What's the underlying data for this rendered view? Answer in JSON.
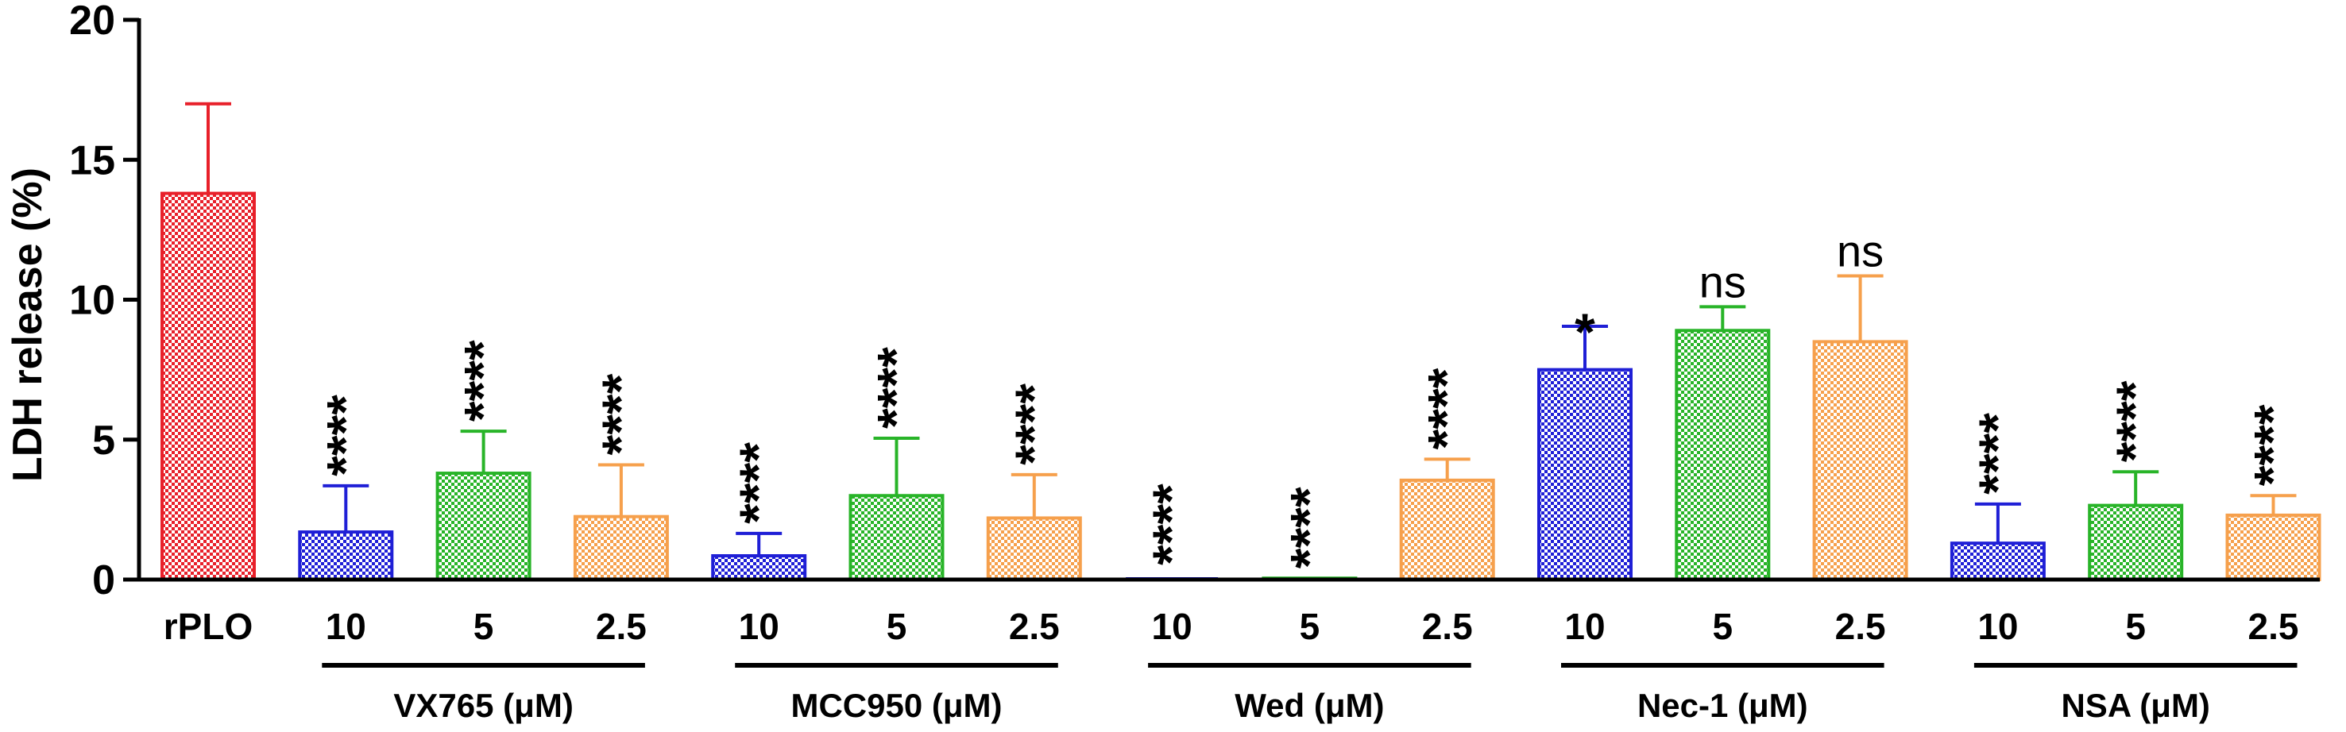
{
  "chart_data": {
    "type": "bar",
    "title": "",
    "xlabel": "",
    "ylabel": "LDH release (%)",
    "ylim": [
      0,
      20
    ],
    "yticks": [
      "0",
      "5",
      "10",
      "15",
      "20"
    ],
    "bars": [
      {
        "label": "rPLO",
        "value": 13.8,
        "error": 3.2,
        "color": "#e8202a",
        "sig": ""
      },
      {
        "label": "10",
        "value": 1.7,
        "error": 1.65,
        "color": "#1f1fd6",
        "sig": "****"
      },
      {
        "label": "5",
        "value": 3.8,
        "error": 1.5,
        "color": "#28b428",
        "sig": "****"
      },
      {
        "label": "2.5",
        "value": 2.25,
        "error": 1.85,
        "color": "#f6a04c",
        "sig": "****"
      },
      {
        "label": "10",
        "value": 0.85,
        "error": 0.8,
        "color": "#1f1fd6",
        "sig": "****"
      },
      {
        "label": "5",
        "value": 3.0,
        "error": 2.05,
        "color": "#28b428",
        "sig": "****"
      },
      {
        "label": "2.5",
        "value": 2.2,
        "error": 1.55,
        "color": "#f6a04c",
        "sig": "****"
      },
      {
        "label": "10",
        "value": 0,
        "error": 0,
        "color": "#1f1fd6",
        "sig": "****"
      },
      {
        "label": "5",
        "value": 0.05,
        "error": 0,
        "color": "#28b428",
        "sig": "****"
      },
      {
        "label": "2.5",
        "value": 3.55,
        "error": 0.75,
        "color": "#f6a04c",
        "sig": "****"
      },
      {
        "label": "10",
        "value": 7.5,
        "error": 1.55,
        "color": "#1f1fd6",
        "sig": "*"
      },
      {
        "label": "5",
        "value": 8.9,
        "error": 0.85,
        "color": "#28b428",
        "sig": "ns"
      },
      {
        "label": "2.5",
        "value": 8.5,
        "error": 2.35,
        "color": "#f6a04c",
        "sig": "ns"
      },
      {
        "label": "10",
        "value": 1.3,
        "error": 1.4,
        "color": "#1f1fd6",
        "sig": "****"
      },
      {
        "label": "5",
        "value": 2.65,
        "error": 1.2,
        "color": "#28b428",
        "sig": "****"
      },
      {
        "label": "2.5",
        "value": 2.3,
        "error": 0.7,
        "color": "#f6a04c",
        "sig": "****"
      }
    ],
    "groups": [
      {
        "label": "VX765 (μM)",
        "first": 1,
        "last": 3
      },
      {
        "label": "MCC950 (μM)",
        "first": 4,
        "last": 6
      },
      {
        "label": "Wed (μM)",
        "first": 7,
        "last": 9
      },
      {
        "label": "Nec-1 (μM)",
        "first": 10,
        "last": 12
      },
      {
        "label": "NSA (μM)",
        "first": 13,
        "last": 15
      }
    ]
  }
}
